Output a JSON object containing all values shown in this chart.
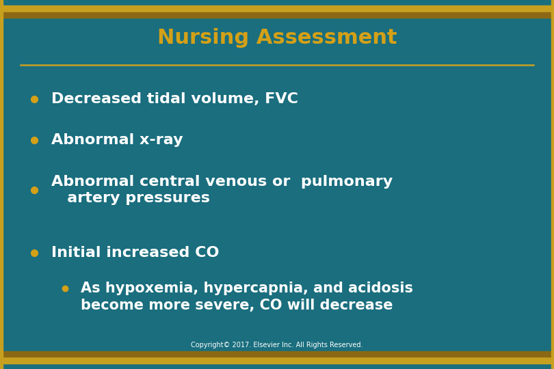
{
  "title": "Nursing Assessment",
  "title_color": "#D4A017",
  "title_fontsize": 22,
  "background_color": "#1A6E7E",
  "border_color": "#C8A020",
  "line_color": "#C8A020",
  "bullet_color": "#D4A017",
  "text_color": "#FFFFFF",
  "bullet_items": [
    "Decreased tidal volume, FVC",
    "Abnormal x-ray",
    "Abnormal central venous or  pulmonary\n   artery pressures",
    "Initial increased CO"
  ],
  "sub_bullet_line1": "As hypoxemia, hypercapnia, and acidosis",
  "sub_bullet_line2": "become more severe, CO will decrease",
  "copyright": "Copyright© 2017. Elsevier Inc. All Rights Reserved.",
  "main_fontsize": 16,
  "sub_fontsize": 15,
  "copyright_fontsize": 7,
  "gold_bar_color": "#C8A020",
  "gold_bar2_color": "#8B6914"
}
